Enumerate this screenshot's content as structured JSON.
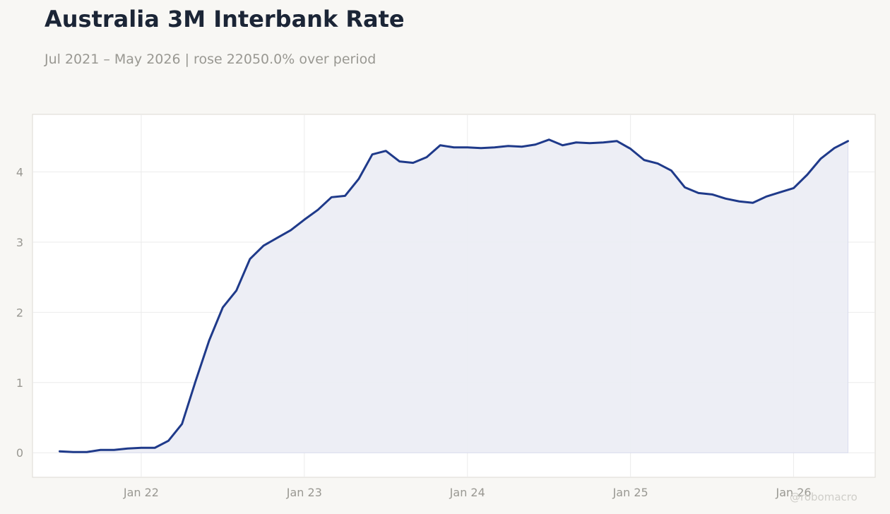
{
  "title": "Australia 3M Interbank Rate",
  "subtitle": "Jul 2021 – May 2026 | rose 22050.0% over period",
  "watermark": "@robomacro",
  "colors": {
    "line": "#1f3a8a",
    "fill": "#ecedf4",
    "background": "#f8f7f4",
    "plot_background": "#ffffff",
    "grid": "#ebebeb",
    "axis_text": "#999892",
    "title": "#1b2536"
  },
  "chart_data": {
    "type": "area",
    "x_tick_labels": [
      "Jan 22",
      "Jan 23",
      "Jan 24",
      "Jan 25",
      "Jan 26"
    ],
    "y_tick_labels": [
      "0",
      "1",
      "2",
      "3",
      "4"
    ],
    "y_ticks": [
      0,
      1,
      2,
      3,
      4
    ],
    "ylim": [
      -0.35,
      4.82
    ],
    "xlim": [
      "2021-05",
      "2026-07"
    ],
    "grid": true,
    "series": [
      {
        "x": [
          "2021-07",
          "2021-08",
          "2021-09",
          "2021-10",
          "2021-11",
          "2021-12",
          "2022-01",
          "2022-02",
          "2022-03",
          "2022-04",
          "2022-05",
          "2022-06",
          "2022-07",
          "2022-08",
          "2022-09",
          "2022-10",
          "2022-11",
          "2022-12",
          "2023-01",
          "2023-02",
          "2023-03",
          "2023-04",
          "2023-05",
          "2023-06",
          "2023-07",
          "2023-08",
          "2023-09",
          "2023-10",
          "2023-11",
          "2023-12",
          "2024-01",
          "2024-02",
          "2024-03",
          "2024-04",
          "2024-05",
          "2024-06",
          "2024-07",
          "2024-08",
          "2024-09",
          "2024-10",
          "2024-11",
          "2024-12",
          "2025-01",
          "2025-02",
          "2025-03",
          "2025-04",
          "2025-05",
          "2025-06",
          "2025-07",
          "2025-08",
          "2025-09",
          "2025-10",
          "2025-11",
          "2025-12",
          "2026-01",
          "2026-02",
          "2026-03",
          "2026-04",
          "2026-05"
        ],
        "values": [
          0.02,
          0.01,
          0.01,
          0.04,
          0.04,
          0.06,
          0.07,
          0.07,
          0.17,
          0.41,
          1.02,
          1.6,
          2.07,
          2.31,
          2.76,
          2.95,
          3.06,
          3.17,
          3.32,
          3.46,
          3.64,
          3.66,
          3.9,
          4.25,
          4.3,
          4.15,
          4.13,
          4.21,
          4.38,
          4.35,
          4.35,
          4.34,
          4.35,
          4.37,
          4.36,
          4.39,
          4.46,
          4.38,
          4.42,
          4.41,
          4.42,
          4.44,
          4.33,
          4.17,
          4.12,
          4.02,
          3.78,
          3.7,
          3.68,
          3.62,
          3.58,
          3.56,
          3.65,
          3.71,
          3.77,
          3.96,
          4.19,
          4.34,
          4.44
        ]
      }
    ]
  }
}
